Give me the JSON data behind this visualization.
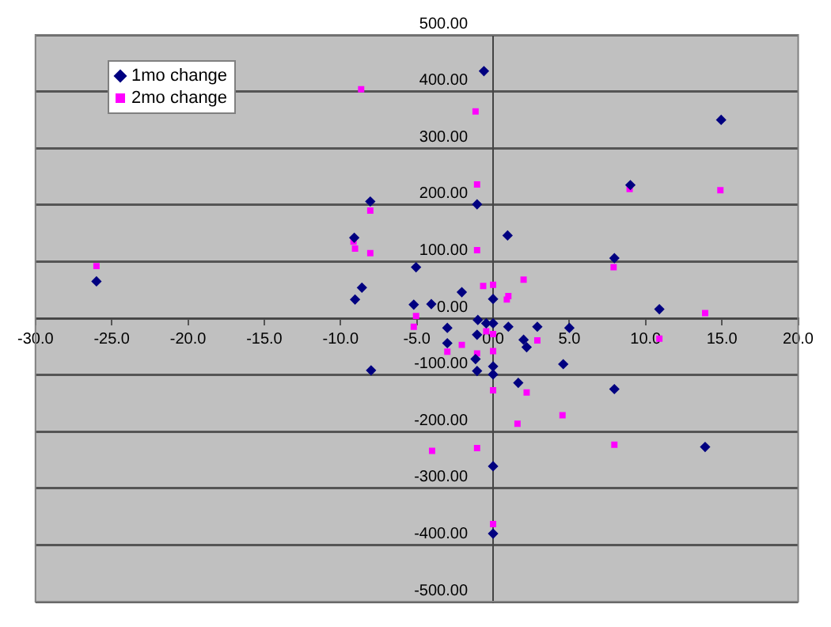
{
  "chart_data": {
    "type": "scatter",
    "xlim": [
      -30,
      20
    ],
    "ylim": [
      -500,
      500
    ],
    "xticks": [
      {
        "value": -30,
        "label": "-30.0"
      },
      {
        "value": -25,
        "label": "-25.0"
      },
      {
        "value": -20,
        "label": "-20.0"
      },
      {
        "value": -15,
        "label": "-15.0"
      },
      {
        "value": -10,
        "label": "-10.0"
      },
      {
        "value": -5,
        "label": "-5.0"
      },
      {
        "value": 0,
        "label": "0.0"
      },
      {
        "value": 5,
        "label": "5.0"
      },
      {
        "value": 10,
        "label": "10.0"
      },
      {
        "value": 15,
        "label": "15.0"
      },
      {
        "value": 20,
        "label": "20.0"
      }
    ],
    "yticks": [
      {
        "value": -500,
        "label": "-500.00"
      },
      {
        "value": -400,
        "label": "-400.00"
      },
      {
        "value": -300,
        "label": "-300.00"
      },
      {
        "value": -200,
        "label": "-200.00"
      },
      {
        "value": -100,
        "label": "-100.00"
      },
      {
        "value": 0,
        "label": "0.00"
      },
      {
        "value": 100,
        "label": "100.00"
      },
      {
        "value": 200,
        "label": "200.00"
      },
      {
        "value": 300,
        "label": "300.00"
      },
      {
        "value": 400,
        "label": "400.00"
      },
      {
        "value": 500,
        "label": "500.00"
      }
    ],
    "grid": "y",
    "legend": "top left",
    "series": [
      {
        "name": "1mo change",
        "color": "#000080",
        "marker": "diamond",
        "x": [
          -26,
          -9.1,
          -8.05,
          -8.6,
          -9.05,
          -8.0,
          -5.2,
          -5.05,
          -4.05,
          -3.0,
          -3.0,
          -2.05,
          -1.15,
          -1.05,
          -1.05,
          -1.05,
          -1.0,
          -0.6,
          -0.45,
          0,
          0,
          0,
          0,
          0,
          0,
          0.95,
          1.0,
          1.65,
          2.0,
          2.2,
          2.9,
          4.6,
          5.0,
          7.95,
          7.95,
          9.0,
          10.9,
          13.9,
          14.95
        ],
        "values": [
          65,
          142,
          206,
          54,
          33,
          -92,
          24,
          90,
          25,
          -17,
          -44,
          46,
          -72,
          201,
          -29,
          -93,
          -3,
          436,
          -9,
          34,
          -9,
          -85,
          -99,
          -261,
          -380,
          146,
          -15,
          -114,
          -38,
          -51,
          -15,
          -81,
          -17,
          106,
          -125,
          235,
          16,
          -227,
          350
        ]
      },
      {
        "name": "2mo change",
        "color": "#ff00ff",
        "marker": "square",
        "x": [
          -26,
          -8.65,
          -9.15,
          -9.05,
          -8.05,
          -8.05,
          -5.05,
          -5.2,
          -4.0,
          -3.0,
          -2.05,
          -1.15,
          -1.05,
          -1.05,
          -1.05,
          -1.05,
          -0.65,
          -0.45,
          0,
          0,
          0,
          0,
          0,
          0.9,
          1.0,
          1.6,
          2.0,
          2.2,
          2.9,
          4.55,
          7.9,
          7.95,
          8.95,
          10.9,
          13.9,
          14.9
        ],
        "values": [
          92,
          404,
          135,
          123,
          190,
          115,
          4,
          -15,
          -234,
          -59,
          -47,
          365,
          236,
          120,
          -62,
          -229,
          57,
          -23,
          59,
          -28,
          -58,
          -127,
          -363,
          33,
          39,
          -186,
          68,
          -131,
          -39,
          -171,
          90,
          -223,
          228,
          -36,
          9,
          226
        ]
      }
    ]
  }
}
